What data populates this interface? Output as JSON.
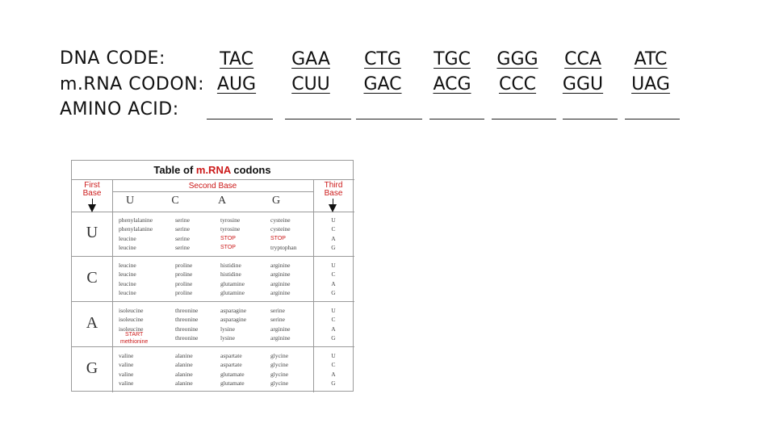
{
  "rows": {
    "dna_label": "DNA CODE:",
    "mrna_label": "m.RNA CODON:",
    "amino_label": "AMINO ACID:"
  },
  "dna": [
    "TAC",
    "GAA",
    "CTG",
    "TGC",
    "GGG",
    "CCA",
    "ATC"
  ],
  "mrna": [
    "AUG",
    "CUU",
    "GAC",
    "ACG",
    "CCC",
    "GGU",
    "UAG"
  ],
  "table": {
    "title_pre": "Table of ",
    "title_red": "m.RNA",
    "title_post": " codons",
    "first_base": "First\nBase",
    "second_base": "Second Base",
    "third_base": "Third\nBase",
    "col_letters": [
      "U",
      "C",
      "A",
      "G"
    ],
    "row_letters": [
      "U",
      "C",
      "A",
      "G"
    ],
    "third_letters": [
      "U",
      "C",
      "A",
      "G"
    ],
    "start_label": "START",
    "start_sub": "methionine",
    "blocks": [
      {
        "U": [
          "phenylalanine",
          "phenylalanine",
          "leucine",
          "leucine"
        ],
        "C": [
          "serine",
          "serine",
          "serine",
          "serine"
        ],
        "A": [
          "tyrosine",
          "tyrosine",
          "STOP",
          "STOP"
        ],
        "G": [
          "cysteine",
          "cysteine",
          "STOP",
          "tryptophan"
        ]
      },
      {
        "U": [
          "leucine",
          "leucine",
          "leucine",
          "leucine"
        ],
        "C": [
          "proline",
          "proline",
          "proline",
          "proline"
        ],
        "A": [
          "histidine",
          "histidine",
          "glutamine",
          "glutamine"
        ],
        "G": [
          "arginine",
          "arginine",
          "arginine",
          "arginine"
        ]
      },
      {
        "U": [
          "isoleucine",
          "isoleucine",
          "isoleucine",
          ""
        ],
        "C": [
          "threonine",
          "threonine",
          "threonine",
          "threonine"
        ],
        "A": [
          "asparagine",
          "asparagine",
          "lysine",
          "lysine"
        ],
        "G": [
          "serine",
          "serine",
          "arginine",
          "arginine"
        ]
      },
      {
        "U": [
          "valine",
          "valine",
          "valine",
          "valine"
        ],
        "C": [
          "alanine",
          "alanine",
          "alanine",
          "alanine"
        ],
        "A": [
          "aspartate",
          "aspartate",
          "glutamate",
          "glutamate"
        ],
        "G": [
          "glycine",
          "glycine",
          "glycine",
          "glycine"
        ]
      }
    ]
  },
  "colors": {
    "accent_red": "#cc1a1a",
    "text": "#111111",
    "grid": "#9a9a9a"
  }
}
